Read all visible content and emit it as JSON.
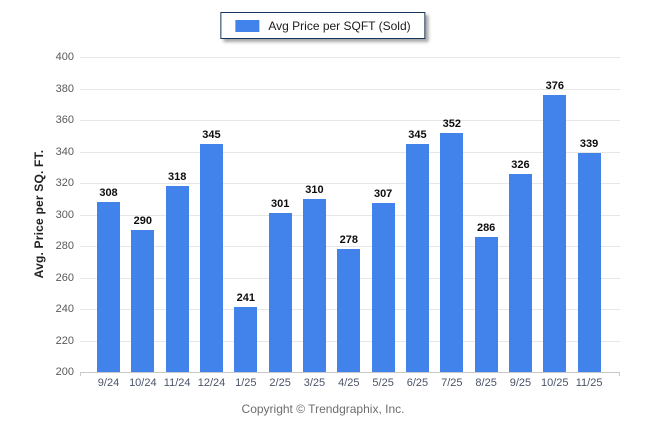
{
  "legend": {
    "label": "Avg Price per SQFT (Sold)"
  },
  "chart_data": {
    "type": "bar",
    "title": "",
    "categories": [
      "9/24",
      "10/24",
      "11/24",
      "12/24",
      "1/25",
      "2/25",
      "3/25",
      "4/25",
      "5/25",
      "6/25",
      "7/25",
      "8/25",
      "9/25",
      "10/25",
      "11/25"
    ],
    "values": [
      308,
      290,
      318,
      345,
      241,
      301,
      310,
      278,
      307,
      345,
      352,
      286,
      326,
      376,
      339
    ],
    "xlabel": "",
    "ylabel": "Avg. Price per SQ. FT.",
    "ylim": [
      200,
      400
    ],
    "ytick_step": 20,
    "grid": true,
    "legend_position": "top-center",
    "legend_entries": [
      "Avg Price per SQFT (Sold)"
    ]
  },
  "colors": {
    "bar": "#4183EA",
    "legend_border": "#16365C",
    "gridline": "#E7E7E7",
    "axis_line": "#C9C9C9",
    "ytick_text": "#595959",
    "xtick_text": "#4A5468",
    "value_label": "#0D0D0D",
    "footer_text": "#6E6E6E"
  },
  "footer": {
    "copyright": "Copyright © Trendgraphix, Inc."
  }
}
